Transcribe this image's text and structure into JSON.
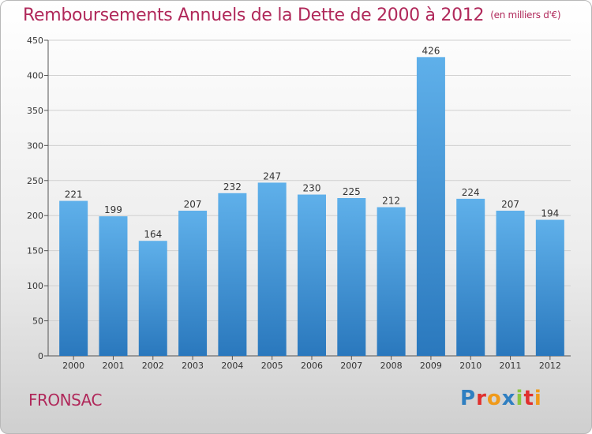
{
  "title": "Remboursements Annuels de la Dette de 2000 à 2012",
  "unit_note": "(en milliers d'€)",
  "commune": "FRONSAC",
  "logo": {
    "letters": [
      "P",
      "r",
      "o",
      "x",
      "i",
      "t",
      "i"
    ],
    "colors": [
      "#2f7fc1",
      "#e0302e",
      "#f09a1a",
      "#2f7fc1",
      "#8cc63f",
      "#e0302e",
      "#f09a1a"
    ]
  },
  "chart_data": {
    "type": "bar",
    "categories": [
      "2000",
      "2001",
      "2002",
      "2003",
      "2004",
      "2005",
      "2006",
      "2007",
      "2008",
      "2009",
      "2010",
      "2011",
      "2012"
    ],
    "values": [
      221,
      199,
      164,
      207,
      232,
      247,
      230,
      225,
      212,
      426,
      224,
      207,
      194
    ],
    "data_labels": [
      "221",
      "199",
      "164",
      "207",
      "232",
      "247",
      "230",
      "225",
      "212",
      "426",
      "224",
      "207",
      "194"
    ],
    "y_ticks": [
      "0",
      "50",
      "100",
      "150",
      "200",
      "250",
      "300",
      "350",
      "400",
      "450"
    ],
    "ylim": [
      0,
      450
    ],
    "grid": true,
    "bar_color": "#3a8fd4"
  }
}
